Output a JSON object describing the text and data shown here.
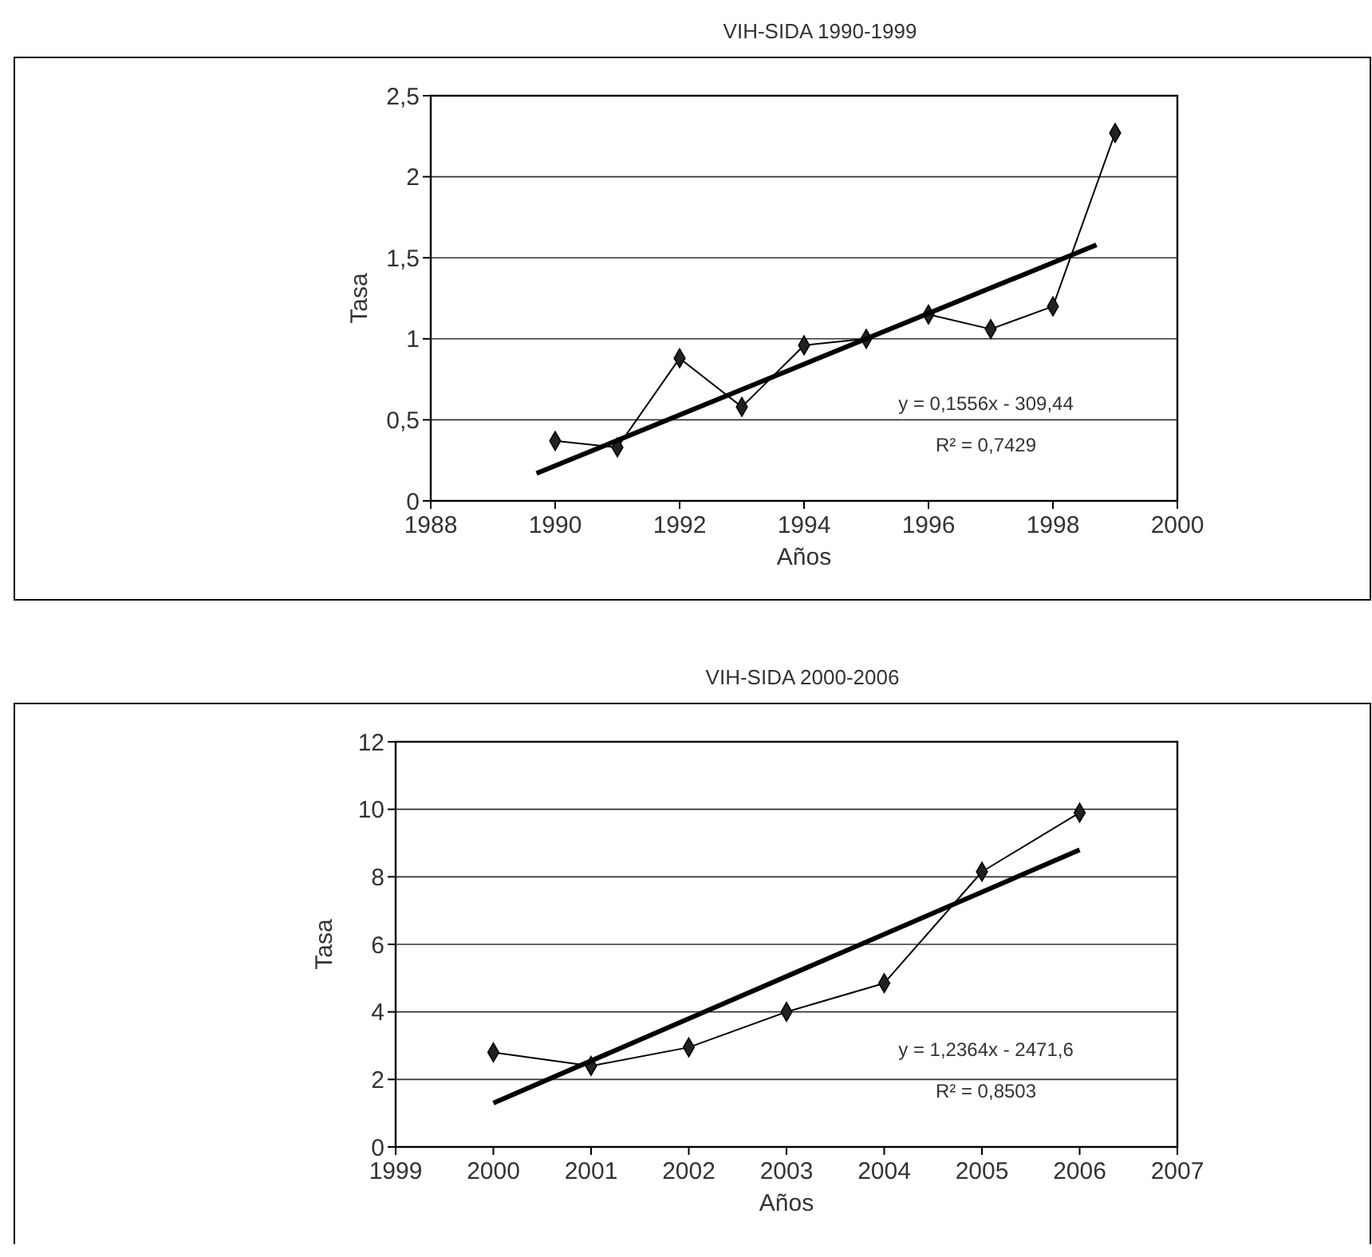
{
  "chart_data": [
    {
      "type": "line",
      "title": "VIH-SIDA 1990-1999",
      "xlabel": "Años",
      "ylabel": "Tasa",
      "xlim": [
        1988,
        2000
      ],
      "xticks": [
        1988,
        1990,
        1992,
        1994,
        1996,
        1998,
        2000
      ],
      "ylim": [
        0,
        2.5
      ],
      "yticks": [
        0,
        {
          "value": 0.5,
          "label": "0,5"
        },
        1,
        {
          "value": 1.5,
          "label": "1,5"
        },
        2,
        {
          "value": 2.5,
          "label": "2,5"
        }
      ],
      "grid": "y",
      "series": [
        {
          "color": "#000000",
          "marker": "diamond",
          "x": [
            1990,
            1991,
            1992,
            1993,
            1994,
            1995,
            1996,
            1997,
            1998,
            1999
          ],
          "values": [
            0.37,
            0.33,
            0.88,
            0.58,
            0.96,
            1.0,
            1.15,
            1.06,
            1.2,
            2.27
          ]
        },
        {
          "type": "line",
          "color": "#000000",
          "marker": "none",
          "x": [
            1989.7,
            1998.7
          ],
          "values": [
            0.17,
            1.58
          ]
        }
      ],
      "annotations": [
        "y = 0,1556x - 309,44",
        "R² = 0,7429"
      ]
    },
    {
      "type": "line",
      "title": "VIH-SIDA 2000-2006",
      "xlabel": "Años",
      "ylabel": "Tasa",
      "xlim": [
        1999,
        2007
      ],
      "xticks": [
        1999,
        2000,
        2001,
        2002,
        2003,
        2004,
        2005,
        2006,
        2007
      ],
      "ylim": [
        0,
        12
      ],
      "yticks": [
        0,
        2,
        4,
        6,
        8,
        10,
        12
      ],
      "grid": "y",
      "series": [
        {
          "color": "#000000",
          "marker": "diamond",
          "x": [
            2000,
            2001,
            2002,
            2003,
            2004,
            2005,
            2006
          ],
          "values": [
            2.8,
            2.4,
            2.95,
            4.0,
            4.85,
            8.15,
            9.9
          ]
        },
        {
          "type": "line",
          "color": "#000000",
          "marker": "none",
          "x": [
            2000,
            2006
          ],
          "values": [
            1.3,
            8.8
          ]
        }
      ],
      "annotations": [
        "y = 1,2364x - 2471,6",
        "R² = 0,8503"
      ]
    }
  ]
}
